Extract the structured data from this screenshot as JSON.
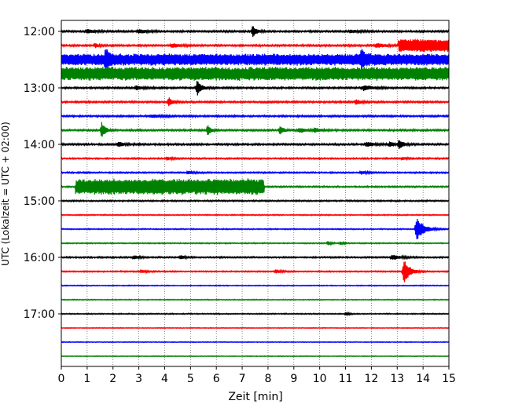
{
  "chart_data": {
    "type": "line",
    "title": "",
    "xlabel": "Zeit  [min]",
    "ylabel": "UTC (Lokalzeit = UTC + 02:00)",
    "xlim": [
      0,
      15
    ],
    "x_ticks": [
      "0",
      "1",
      "2",
      "3",
      "4",
      "5",
      "6",
      "7",
      "8",
      "9",
      "10",
      "11",
      "12",
      "13",
      "14",
      "15"
    ],
    "y_ticks": [
      "12:00",
      "13:00",
      "14:00",
      "15:00",
      "16:00",
      "17:00"
    ],
    "grid_x": true,
    "colors": [
      "#000000",
      "#ff0000",
      "#0000ff",
      "#008000"
    ],
    "trace_interval_min": 15,
    "series": [
      {
        "start": "12:00",
        "color": "#000000",
        "noise": 0.1,
        "bursts": [
          {
            "t": 7.4,
            "a": 0.8,
            "w": 0.15
          },
          {
            "t": 1.0,
            "a": 0.25,
            "w": 0.3
          },
          {
            "t": 3.0,
            "a": 0.25,
            "w": 0.3
          },
          {
            "t": 11.2,
            "a": 0.2,
            "w": 0.3
          }
        ]
      },
      {
        "start": "12:15",
        "color": "#ff0000",
        "noise": 0.1,
        "bursts": [
          {
            "t": 1.3,
            "a": 0.3,
            "w": 0.15
          },
          {
            "t": 4.3,
            "a": 0.25,
            "w": 0.3
          },
          {
            "t": 12.2,
            "a": 0.3,
            "w": 0.3
          }
        ],
        "bands": [
          {
            "start": 13.05,
            "end": 15.0,
            "a": 0.85
          }
        ]
      },
      {
        "start": "12:30",
        "color": "#0000ff",
        "noise": 0.1,
        "bursts": [
          {
            "t": 1.7,
            "a": 1.1,
            "w": 0.15
          },
          {
            "t": 11.6,
            "a": 1.0,
            "w": 0.12
          }
        ],
        "bands": [
          {
            "start": 0.0,
            "end": 15.0,
            "a": 0.75
          }
        ]
      },
      {
        "start": "12:45",
        "color": "#008000",
        "noise": 0.1,
        "bursts": [],
        "bands": [
          {
            "start": 0.0,
            "end": 15.0,
            "a": 0.9
          }
        ]
      },
      {
        "start": "13:00",
        "color": "#000000",
        "noise": 0.1,
        "bursts": [
          {
            "t": 5.25,
            "a": 1.1,
            "w": 0.15
          },
          {
            "t": 2.9,
            "a": 0.3,
            "w": 0.2
          },
          {
            "t": 11.7,
            "a": 0.35,
            "w": 0.3
          }
        ]
      },
      {
        "start": "13:15",
        "color": "#ff0000",
        "noise": 0.1,
        "bursts": [
          {
            "t": 4.15,
            "a": 0.7,
            "w": 0.12
          },
          {
            "t": 11.4,
            "a": 0.35,
            "w": 0.2
          }
        ]
      },
      {
        "start": "13:30",
        "color": "#0000ff",
        "noise": 0.1,
        "bursts": [
          {
            "t": 3.5,
            "a": 0.2,
            "w": 0.3
          }
        ]
      },
      {
        "start": "13:45",
        "color": "#008000",
        "noise": 0.1,
        "bursts": [
          {
            "t": 1.55,
            "a": 1.4,
            "w": 0.12
          },
          {
            "t": 5.65,
            "a": 0.8,
            "w": 0.12
          },
          {
            "t": 8.45,
            "a": 0.75,
            "w": 0.12
          },
          {
            "t": 9.2,
            "a": 0.3,
            "w": 0.3
          },
          {
            "t": 9.8,
            "a": 0.25,
            "w": 0.2
          }
        ]
      },
      {
        "start": "14:00",
        "color": "#000000",
        "noise": 0.1,
        "bursts": [
          {
            "t": 13.05,
            "a": 0.6,
            "w": 0.15
          },
          {
            "t": 2.2,
            "a": 0.35,
            "w": 0.2
          },
          {
            "t": 11.8,
            "a": 0.3,
            "w": 0.3
          },
          {
            "t": 12.7,
            "a": 0.3,
            "w": 0.2
          }
        ]
      },
      {
        "start": "14:15",
        "color": "#ff0000",
        "noise": 0.08,
        "bursts": [
          {
            "t": 4.1,
            "a": 0.2,
            "w": 0.2
          },
          {
            "t": 13.2,
            "a": 0.2,
            "w": 0.2
          }
        ]
      },
      {
        "start": "14:30",
        "color": "#0000ff",
        "noise": 0.08,
        "bursts": [
          {
            "t": 4.9,
            "a": 0.2,
            "w": 0.2
          },
          {
            "t": 11.6,
            "a": 0.2,
            "w": 0.2
          }
        ]
      },
      {
        "start": "14:45",
        "color": "#008000",
        "noise": 0.08,
        "bursts": [],
        "bands": [
          {
            "start": 0.55,
            "end": 7.85,
            "a": 1.1
          }
        ]
      },
      {
        "start": "15:00",
        "color": "#000000",
        "noise": 0.08,
        "bursts": []
      },
      {
        "start": "15:15",
        "color": "#ff0000",
        "noise": 0.06,
        "bursts": []
      },
      {
        "start": "15:30",
        "color": "#0000ff",
        "noise": 0.06,
        "bursts": [
          {
            "t": 13.75,
            "a": 1.7,
            "w": 0.25
          }
        ]
      },
      {
        "start": "15:45",
        "color": "#008000",
        "noise": 0.06,
        "bursts": [
          {
            "t": 10.3,
            "a": 0.3,
            "w": 0.12
          },
          {
            "t": 10.8,
            "a": 0.2,
            "w": 0.12
          }
        ]
      },
      {
        "start": "16:00",
        "color": "#000000",
        "noise": 0.08,
        "bursts": [
          {
            "t": 4.6,
            "a": 0.3,
            "w": 0.15
          },
          {
            "t": 2.8,
            "a": 0.25,
            "w": 0.2
          },
          {
            "t": 12.8,
            "a": 0.35,
            "w": 0.3
          }
        ]
      },
      {
        "start": "16:15",
        "color": "#ff0000",
        "noise": 0.07,
        "bursts": [
          {
            "t": 13.25,
            "a": 1.9,
            "w": 0.2
          },
          {
            "t": 3.1,
            "a": 0.2,
            "w": 0.2
          },
          {
            "t": 8.3,
            "a": 0.25,
            "w": 0.2
          }
        ]
      },
      {
        "start": "16:30",
        "color": "#0000ff",
        "noise": 0.05,
        "bursts": []
      },
      {
        "start": "16:45",
        "color": "#008000",
        "noise": 0.05,
        "bursts": []
      },
      {
        "start": "17:00",
        "color": "#000000",
        "noise": 0.06,
        "bursts": [
          {
            "t": 11.0,
            "a": 0.2,
            "w": 0.15
          }
        ]
      },
      {
        "start": "17:15",
        "color": "#ff0000",
        "noise": 0.04,
        "bursts": []
      },
      {
        "start": "17:30",
        "color": "#0000ff",
        "noise": 0.04,
        "bursts": []
      },
      {
        "start": "17:45",
        "color": "#008000",
        "noise": 0.04,
        "bursts": []
      }
    ]
  }
}
